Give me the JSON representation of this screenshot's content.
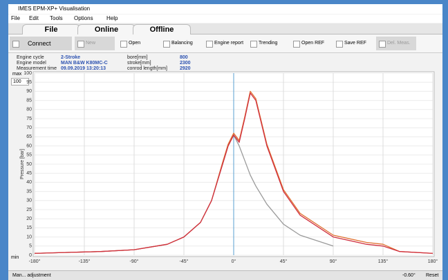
{
  "window": {
    "title": "IMES EPM-XP+ Visualisation"
  },
  "menu": [
    "File",
    "Edit",
    "Tools",
    "Options",
    "Help"
  ],
  "tabs": [
    "File",
    "Online",
    "Offline"
  ],
  "toolbar": [
    "Connect",
    "New",
    "Open",
    "Balancing",
    "Engine report",
    "Trending",
    "Open REF",
    "Save REF",
    "Del. Meas."
  ],
  "info": {
    "rows": [
      [
        "Engine cycle",
        "2-Stroke",
        "bore[mm]",
        800
      ],
      [
        "Engine model",
        "MAN B&W K80MC-C",
        "stroke[mm]",
        2300
      ],
      [
        "Measurement time",
        "09.09.2019 13:20:13",
        "conrod length[mm]",
        2920
      ]
    ]
  },
  "range": {
    "max_label": "max",
    "max_value": 100,
    "min_label": "min"
  },
  "status": {
    "adjust": "Man... adjustment",
    "angle": "-0.60°",
    "reset": "Reset"
  },
  "chart_data": {
    "type": "line",
    "y_label": "Pressure [bar]",
    "x": [
      -180,
      -150,
      -120,
      -90,
      -60,
      -45,
      -30,
      -20,
      -10,
      -5,
      0,
      5,
      10,
      15,
      20,
      30,
      45,
      60,
      90,
      120,
      135,
      150,
      180
    ],
    "series": [
      {
        "color": "#9a9a9a",
        "values": [
          1,
          1.5,
          2,
          3,
          6,
          10,
          18,
          30,
          50,
          60,
          66,
          60,
          52,
          44,
          38,
          28,
          17,
          11,
          5,
          null,
          null,
          null,
          null
        ]
      },
      {
        "color": "#e07030",
        "values": [
          1,
          1.5,
          2,
          3,
          6,
          10,
          18,
          30,
          51,
          61,
          67,
          63,
          76,
          90,
          86,
          61,
          36,
          23,
          11,
          7,
          6,
          2,
          1
        ]
      },
      {
        "color": "#d03040",
        "values": [
          1,
          1.5,
          2,
          3,
          6,
          10,
          18,
          30,
          50,
          60,
          66,
          62,
          75,
          89,
          85,
          60,
          35,
          22,
          10,
          6,
          5,
          2,
          1
        ]
      }
    ],
    "xlim": [
      -180,
      180
    ],
    "xticks": [
      {
        "value": -180,
        "label": "-180°"
      },
      {
        "value": -135,
        "label": "-135°"
      },
      {
        "value": -90,
        "label": "-90°"
      },
      {
        "value": -45,
        "label": "-45°"
      },
      {
        "value": 0,
        "label": "0°"
      },
      {
        "value": 45,
        "label": "45°"
      },
      {
        "value": 90,
        "label": "90°"
      },
      {
        "value": 135,
        "label": "135°"
      },
      {
        "value": 180,
        "label": "180°"
      }
    ],
    "ylim": [
      0,
      100
    ],
    "yticks": [
      0,
      5,
      10,
      15,
      20,
      25,
      30,
      35,
      40,
      45,
      50,
      55,
      60,
      65,
      70,
      75,
      80,
      85,
      90,
      95,
      100
    ],
    "grid": true,
    "tdc_line": 0,
    "tdc_color": "#5aa0d0"
  }
}
